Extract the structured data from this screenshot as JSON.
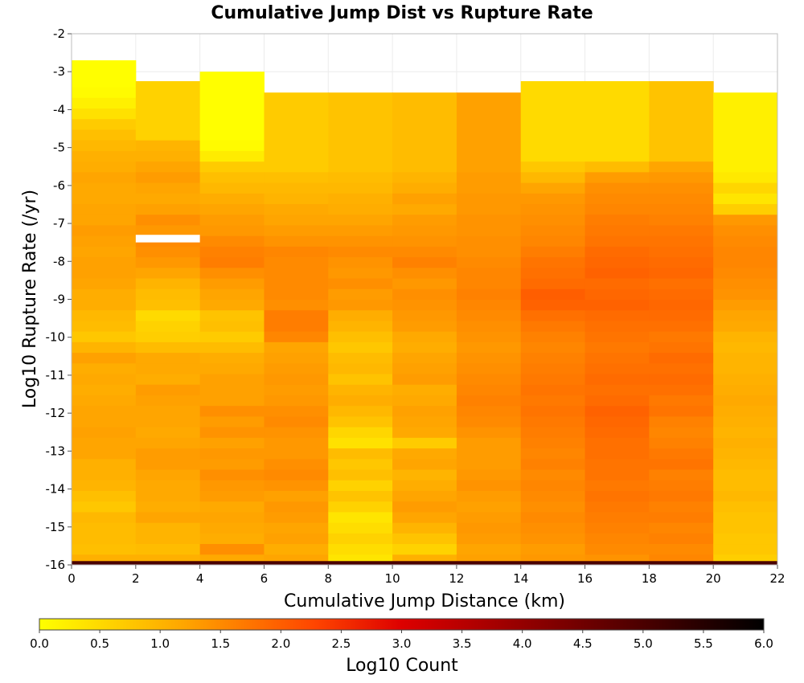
{
  "chart_data": {
    "type": "heatmap",
    "title": "Cumulative Jump Dist vs Rupture Rate",
    "xlabel": "Cumulative Jump Distance (km)",
    "ylabel": "Log10 Rupture Rate (/yr)",
    "xlim": [
      0,
      22
    ],
    "ylim": [
      -16,
      -2
    ],
    "x_ticks": [
      "0",
      "2",
      "4",
      "6",
      "8",
      "10",
      "12",
      "14",
      "16",
      "18",
      "20",
      "22"
    ],
    "y_ticks": [
      "-2",
      "-3",
      "-4",
      "-5",
      "-6",
      "-7",
      "-8",
      "-9",
      "-10",
      "-11",
      "-12",
      "-13",
      "-14",
      "-15",
      "-16"
    ],
    "x_bin_width": 2,
    "y_bin_height": 0.28,
    "y_bins_start": -15.72,
    "colorbar": {
      "label": "Log10 Count",
      "ticks": [
        "0.0",
        "0.5",
        "1.0",
        "1.5",
        "2.0",
        "2.5",
        "3.0",
        "3.5",
        "4.0",
        "4.5",
        "5.0",
        "5.5",
        "6.0"
      ],
      "range": [
        0,
        6
      ],
      "colors": [
        "#ffff00",
        "#ffa500",
        "#ff4500",
        "#dd0000",
        "#700000",
        "#000000"
      ]
    },
    "columns": [
      {
        "x": 1,
        "top": -2.7,
        "values": [
          1.05,
          0.85,
          0.9,
          0.9,
          0.95,
          0.75,
          0.85,
          1.0,
          1.05,
          1.05,
          1.2,
          1.2,
          1.25,
          1.2,
          1.2,
          1.15,
          1.1,
          1.15,
          1.1,
          1.25,
          1.0,
          0.75,
          0.9,
          0.95,
          1.1,
          1.1,
          1.2,
          1.25,
          1.25,
          1.2,
          1.25,
          1.3,
          1.2,
          1.2,
          1.15,
          1.15,
          1.2,
          1.1,
          1.05,
          0.95,
          0.85,
          0.7,
          0.4,
          0.2,
          0.05,
          0.02
        ]
      },
      {
        "x": 3,
        "top": -3.25,
        "values": [
          1.05,
          0.9,
          1.0,
          1.0,
          1.2,
          1.1,
          1.15,
          1.15,
          1.2,
          1.3,
          1.3,
          1.2,
          1.15,
          1.2,
          1.2,
          1.25,
          1.3,
          1.1,
          1.15,
          1.15,
          0.9,
          0.65,
          0.6,
          0.5,
          0.85,
          0.9,
          1.0,
          1.2,
          1.35,
          1.45,
          1.5,
          1.35,
          1.45,
          1.25,
          1.15,
          1.2,
          1.3,
          1.2,
          1.05,
          1.0,
          0.6
        ]
      },
      {
        "x": 5,
        "top": -3.0,
        "values": [
          1.15,
          1.45,
          1.1,
          1.15,
          1.2,
          1.15,
          1.3,
          1.35,
          1.45,
          1.3,
          1.35,
          1.25,
          1.4,
          1.3,
          1.45,
          1.25,
          1.25,
          1.25,
          1.15,
          1.1,
          0.9,
          0.7,
          0.85,
          0.8,
          1.15,
          1.2,
          1.3,
          1.45,
          1.65,
          1.6,
          1.5,
          1.35,
          1.3,
          1.2,
          1.1,
          0.95,
          0.85,
          0.7,
          0.25,
          0.05,
          0.02
        ]
      },
      {
        "x": 7,
        "top": -3.55,
        "values": [
          1.2,
          1.1,
          1.25,
          1.2,
          1.3,
          1.35,
          1.25,
          1.4,
          1.5,
          1.45,
          1.35,
          1.35,
          1.4,
          1.5,
          1.45,
          1.35,
          1.3,
          1.35,
          1.3,
          1.25,
          1.2,
          1.55,
          1.65,
          1.65,
          1.45,
          1.5,
          1.5,
          1.5,
          1.5,
          1.55,
          1.4,
          1.3,
          1.2,
          1.15,
          1.0,
          0.95,
          0.85,
          0.7
        ]
      },
      {
        "x": 9,
        "top": -3.55,
        "values": [
          0.35,
          0.45,
          0.6,
          0.45,
          0.35,
          0.6,
          0.8,
          0.6,
          0.85,
          0.75,
          0.9,
          0.4,
          0.55,
          0.8,
          0.95,
          1.1,
          1.0,
          0.8,
          0.95,
          0.9,
          0.75,
          0.85,
          1.0,
          1.1,
          1.35,
          1.3,
          1.45,
          1.35,
          1.4,
          1.5,
          1.4,
          1.3,
          1.2,
          1.1,
          1.05,
          0.95,
          0.9,
          0.8
        ]
      },
      {
        "x": 11,
        "top": -3.55,
        "values": [
          1.05,
          0.6,
          0.8,
          1.0,
          1.2,
          1.3,
          1.2,
          1.1,
          1.0,
          1.2,
          1.15,
          0.7,
          1.15,
          1.2,
          1.25,
          1.15,
          1.1,
          1.3,
          1.25,
          1.2,
          1.1,
          1.15,
          1.3,
          1.35,
          1.4,
          1.45,
          1.35,
          1.45,
          1.6,
          1.5,
          1.4,
          1.35,
          1.3,
          1.15,
          1.25,
          1.1,
          1.0,
          0.9
        ]
      },
      {
        "x": 13,
        "top": -3.55,
        "values": [
          1.25,
          1.2,
          1.3,
          1.35,
          1.3,
          1.25,
          1.3,
          1.4,
          1.35,
          1.3,
          1.3,
          1.3,
          1.4,
          1.5,
          1.55,
          1.6,
          1.55,
          1.5,
          1.45,
          1.4,
          1.35,
          1.4,
          1.45,
          1.5,
          1.55,
          1.6,
          1.55,
          1.55,
          1.5,
          1.45,
          1.45,
          1.4,
          1.4,
          1.35,
          1.35,
          1.3,
          1.3,
          1.25
        ]
      },
      {
        "x": 15,
        "top": -3.25,
        "values": [
          1.35,
          1.3,
          1.4,
          1.45,
          1.5,
          1.45,
          1.5,
          1.55,
          1.5,
          1.6,
          1.55,
          1.6,
          1.65,
          1.7,
          1.75,
          1.7,
          1.75,
          1.7,
          1.65,
          1.6,
          1.55,
          1.6,
          1.7,
          1.8,
          1.95,
          2.0,
          1.85,
          1.8,
          1.75,
          1.65,
          1.55,
          1.5,
          1.45,
          1.4,
          1.35,
          1.2,
          0.95,
          0.75,
          0.5
        ]
      },
      {
        "x": 17,
        "top": -3.25,
        "values": [
          1.4,
          1.5,
          1.55,
          1.6,
          1.65,
          1.7,
          1.75,
          1.7,
          1.75,
          1.75,
          1.8,
          1.8,
          1.85,
          1.9,
          1.95,
          1.85,
          1.8,
          1.85,
          1.8,
          1.75,
          1.7,
          1.75,
          1.8,
          1.85,
          1.95,
          1.9,
          1.85,
          1.95,
          1.9,
          1.85,
          1.75,
          1.7,
          1.65,
          1.55,
          1.5,
          1.45,
          1.3,
          0.9,
          0.5
        ]
      },
      {
        "x": 19,
        "top": -3.25,
        "values": [
          1.55,
          1.5,
          1.6,
          1.55,
          1.65,
          1.6,
          1.7,
          1.65,
          1.6,
          1.75,
          1.7,
          1.6,
          1.55,
          1.6,
          1.75,
          1.7,
          1.8,
          1.85,
          1.8,
          1.85,
          1.75,
          1.7,
          1.8,
          1.85,
          1.9,
          1.85,
          1.8,
          1.9,
          1.85,
          1.8,
          1.75,
          1.7,
          1.6,
          1.55,
          1.5,
          1.45,
          1.35,
          1.2,
          0.8
        ]
      },
      {
        "x": 21,
        "top": -3.55,
        "values": [
          0.65,
          0.75,
          0.75,
          0.8,
          0.8,
          0.85,
          0.95,
          0.9,
          0.9,
          0.95,
          1.0,
          1.05,
          1.0,
          1.05,
          1.1,
          1.15,
          1.1,
          1.05,
          1.0,
          1.0,
          0.95,
          1.0,
          1.15,
          1.2,
          1.3,
          1.4,
          1.45,
          1.5,
          1.55,
          1.55,
          1.5,
          1.45,
          1.35,
          0.65,
          0.35,
          0.55,
          0.3,
          0.2
        ]
      }
    ],
    "extra_cells": [
      {
        "x": 3,
        "y_from": -7.5,
        "y_to": -7.3,
        "value": null
      }
    ],
    "bottom_band": {
      "y_from": -16.0,
      "y_to": -15.9,
      "value": 5.0
    }
  }
}
